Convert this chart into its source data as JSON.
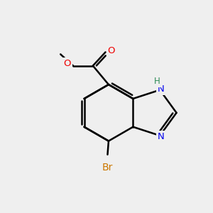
{
  "bg_color": "#efefef",
  "bond_color": "#000000",
  "bond_width": 1.8,
  "N_color": "#0000ee",
  "O_color": "#ee0000",
  "Br_color": "#cc7700",
  "H_color": "#2e8b57",
  "figsize": [
    3.0,
    3.0
  ],
  "dpi": 100,
  "xlim": [
    0,
    10
  ],
  "ylim": [
    0,
    10
  ]
}
